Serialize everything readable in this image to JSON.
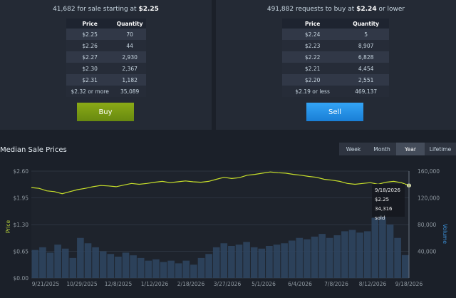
{
  "sell_panel": {
    "count": "41,682",
    "middle": " for sale starting at ",
    "price": "$2.25",
    "headers": [
      "Price",
      "Quantity"
    ],
    "rows": [
      [
        "$2.25",
        "70"
      ],
      [
        "$2.26",
        "44"
      ],
      [
        "$2.27",
        "2,930"
      ],
      [
        "$2.30",
        "2,367"
      ],
      [
        "$2.31",
        "1,182"
      ],
      [
        "$2.32 or more",
        "35,089"
      ]
    ],
    "button": "Buy"
  },
  "buy_panel": {
    "count": "491,882",
    "middle": " requests to buy at ",
    "price": "$2.24",
    "suffix": " or lower",
    "headers": [
      "Price",
      "Quantity"
    ],
    "rows": [
      [
        "$2.24",
        "5"
      ],
      [
        "$2.23",
        "8,907"
      ],
      [
        "$2.22",
        "6,828"
      ],
      [
        "$2.21",
        "4,454"
      ],
      [
        "$2.20",
        "2,551"
      ],
      [
        "$2.19 or less",
        "469,137"
      ]
    ],
    "button": "Sell"
  },
  "section_title": "Median Sale Prices",
  "tabs": [
    {
      "label": "Week",
      "active": false
    },
    {
      "label": "Month",
      "active": false
    },
    {
      "label": "Year",
      "active": true
    },
    {
      "label": "Lifetime",
      "active": false
    }
  ],
  "tooltip": {
    "date": "9/18/2026",
    "price": "$2.25",
    "sold": "34,316 sold"
  },
  "colors": {
    "price_line": "#c8e02a",
    "volume": "#2f4763",
    "ylabel_price": "#b9d33a",
    "ylabel_volume": "#3b8fd6"
  },
  "chart_data": {
    "type": "line",
    "ylabel": "Price",
    "y2label": "Volume",
    "x_ticks": [
      "9/21/2025",
      "10/29/2025",
      "12/8/2025",
      "1/12/2026",
      "2/18/2026",
      "3/27/2026",
      "5/1/2026",
      "6/4/2026",
      "7/8/2026",
      "8/12/2026",
      "9/18/2026"
    ],
    "y_ticks": [
      "$0.00",
      "$0.65",
      "$1.30",
      "$1.95",
      "$2.60"
    ],
    "y_ticks_values": [
      0,
      0.65,
      1.3,
      1.95,
      2.6
    ],
    "ylim": [
      0,
      2.6
    ],
    "y2_ticks": [
      "40,000",
      "80,000",
      "120,000",
      "160,000"
    ],
    "y2_ticks_values": [
      40000,
      80000,
      120000,
      160000
    ],
    "y2lim": [
      0,
      160000
    ],
    "price_series": {
      "name": "Price",
      "values": [
        2.2,
        2.18,
        2.12,
        2.1,
        2.05,
        2.1,
        2.15,
        2.18,
        2.22,
        2.25,
        2.24,
        2.22,
        2.26,
        2.3,
        2.28,
        2.3,
        2.33,
        2.35,
        2.32,
        2.34,
        2.36,
        2.34,
        2.33,
        2.35,
        2.4,
        2.45,
        2.42,
        2.44,
        2.5,
        2.52,
        2.55,
        2.58,
        2.56,
        2.55,
        2.52,
        2.5,
        2.47,
        2.45,
        2.4,
        2.38,
        2.35,
        2.3,
        2.28,
        2.3,
        2.32,
        2.28,
        2.33,
        2.35,
        2.32,
        2.25
      ]
    },
    "volume_series": {
      "name": "Volume",
      "values": [
        42000,
        46000,
        38000,
        50000,
        44000,
        30000,
        60000,
        52000,
        46000,
        40000,
        36000,
        32000,
        38000,
        34000,
        30000,
        26000,
        28000,
        24000,
        26000,
        22000,
        26000,
        20000,
        30000,
        36000,
        46000,
        52000,
        48000,
        50000,
        54000,
        46000,
        44000,
        48000,
        50000,
        52000,
        56000,
        60000,
        58000,
        62000,
        66000,
        60000,
        64000,
        70000,
        72000,
        68000,
        70000,
        90000,
        100000,
        80000,
        60000,
        34316
      ]
    }
  }
}
